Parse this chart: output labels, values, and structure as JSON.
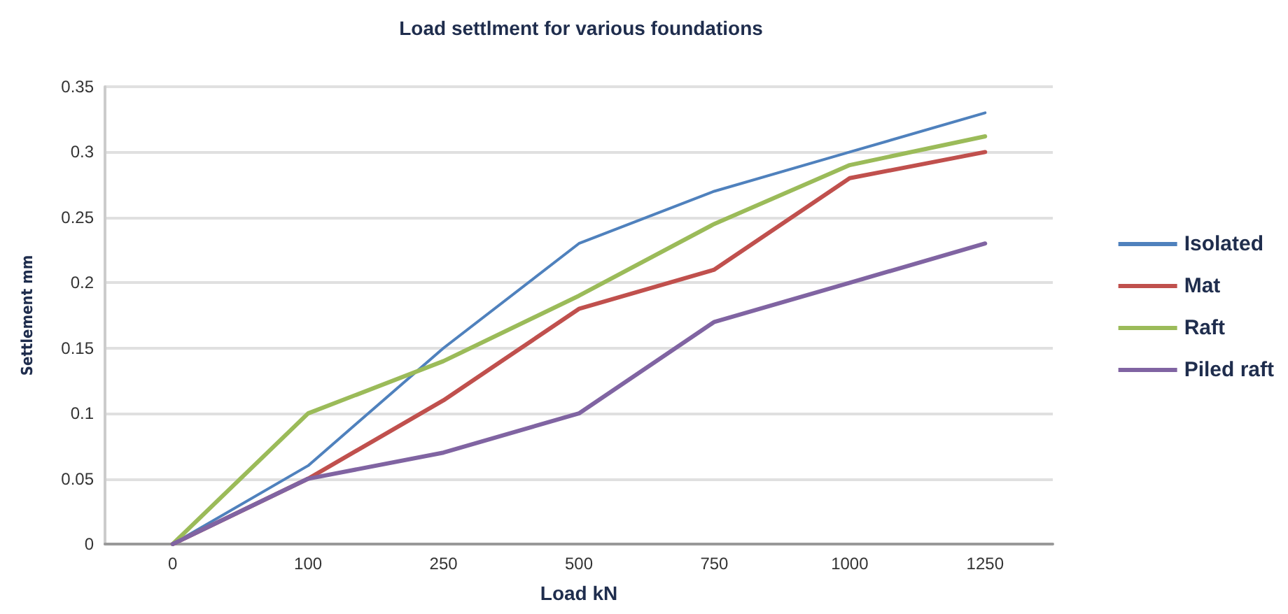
{
  "chart_data": {
    "type": "line",
    "title": "Load settlment for various foundations",
    "xlabel": "Load kN",
    "ylabel": "Settlement mm",
    "categories": [
      "0",
      "100",
      "250",
      "500",
      "750",
      "1000",
      "1250"
    ],
    "series": [
      {
        "name": "Isolated",
        "color": "#4f81bd",
        "values": [
          0,
          0.06,
          0.15,
          0.23,
          0.27,
          0.3,
          0.33
        ]
      },
      {
        "name": "Mat",
        "color": "#c0504d",
        "values": [
          0,
          0.05,
          0.11,
          0.18,
          0.21,
          0.28,
          0.3
        ]
      },
      {
        "name": "Raft",
        "color": "#9bbb59",
        "values": [
          0,
          0.1,
          0.14,
          0.19,
          0.245,
          0.29,
          0.312
        ]
      },
      {
        "name": "Piled raft",
        "color": "#8064a2",
        "values": [
          0,
          0.05,
          0.07,
          0.1,
          0.17,
          0.2,
          0.23
        ]
      }
    ],
    "ylim": [
      0,
      0.35
    ],
    "yticks": [
      0,
      0.05,
      0.1,
      0.15,
      0.2,
      0.25,
      0.3,
      0.35
    ],
    "grid": "y",
    "legend": "right",
    "marker": "none",
    "line_style": "solid"
  }
}
